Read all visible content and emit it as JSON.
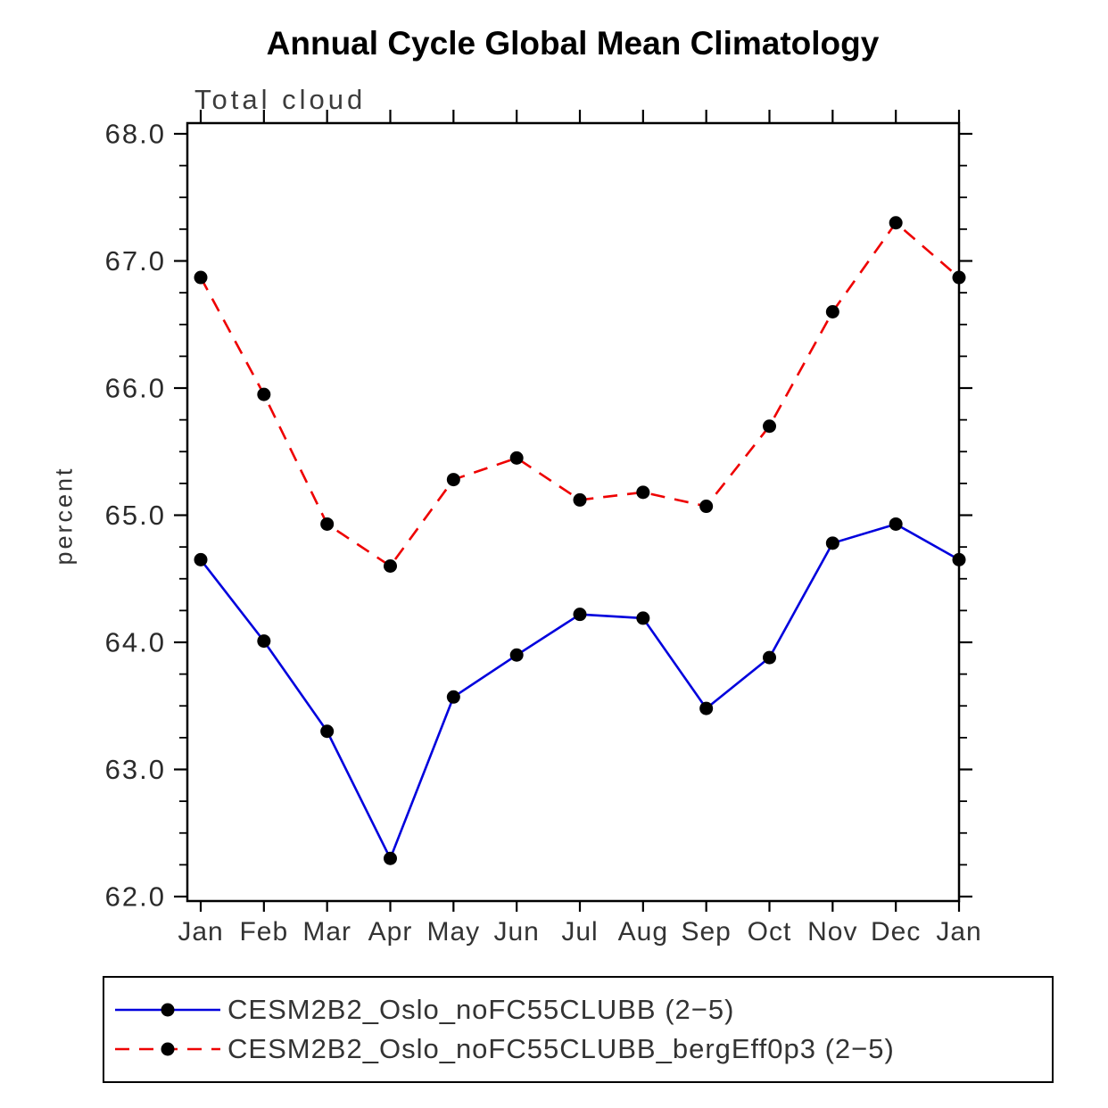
{
  "chart": {
    "title": "Annual Cycle Global Mean Climatology",
    "subtitle": "Total cloud",
    "ylabel": "percent"
  },
  "chart_data": {
    "type": "line",
    "categories": [
      "Jan",
      "Feb",
      "Mar",
      "Apr",
      "May",
      "Jun",
      "Jul",
      "Aug",
      "Sep",
      "Oct",
      "Nov",
      "Dec",
      "Jan"
    ],
    "series": [
      {
        "name": "CESM2B2_Oslo_noFC55CLUBB (2−5)",
        "color": "#0000dd",
        "line_style": "solid",
        "values": [
          64.65,
          64.01,
          63.3,
          62.3,
          63.57,
          63.9,
          64.22,
          64.19,
          63.48,
          63.88,
          64.78,
          64.93,
          64.65
        ]
      },
      {
        "name": "CESM2B2_Oslo_noFC55CLUBB_bergEff0p3 (2−5)",
        "color": "#ee0000",
        "line_style": "dashed",
        "values": [
          66.87,
          65.95,
          64.93,
          64.6,
          65.28,
          65.45,
          65.12,
          65.18,
          65.07,
          65.7,
          66.6,
          67.3,
          66.87
        ]
      }
    ],
    "ylim": [
      62.0,
      68.0
    ],
    "yticks": [
      62.0,
      63.0,
      64.0,
      65.0,
      66.0,
      67.0,
      68.0
    ],
    "y_minor_step": 0.25,
    "ytick_format_decimals": 1,
    "marker": "filled-circle",
    "marker_color": "#000000",
    "grid": "off",
    "legend_position": "bottom"
  }
}
